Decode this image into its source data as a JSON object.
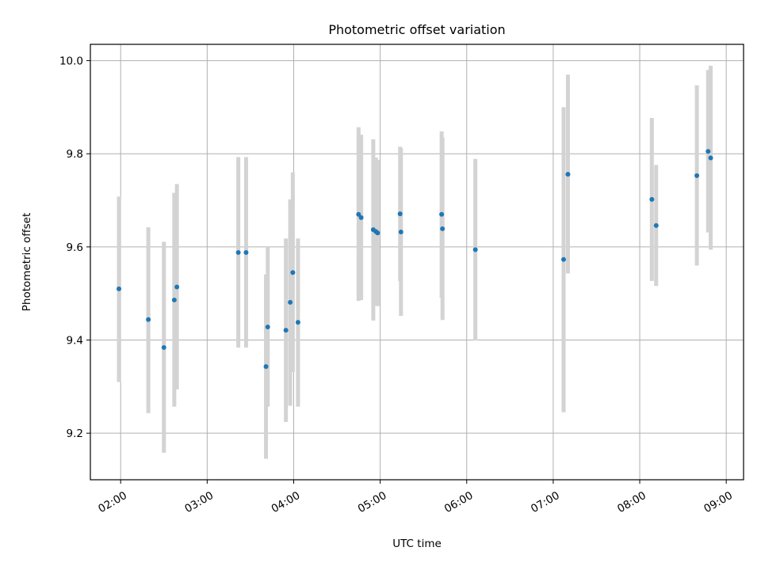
{
  "chart_data": {
    "type": "scatter",
    "title": "Photometric offset variation",
    "xlabel": "UTC time",
    "ylabel": "Photometric offset",
    "x_unit": "hours (UTC)",
    "xlim": [
      1.65,
      9.2
    ],
    "ylim": [
      9.1,
      10.035
    ],
    "xticks": [
      {
        "value": 2,
        "label": "02:00"
      },
      {
        "value": 3,
        "label": "03:00"
      },
      {
        "value": 4,
        "label": "04:00"
      },
      {
        "value": 5,
        "label": "05:00"
      },
      {
        "value": 6,
        "label": "06:00"
      },
      {
        "value": 7,
        "label": "07:00"
      },
      {
        "value": 8,
        "label": "08:00"
      },
      {
        "value": 9,
        "label": "09:00"
      }
    ],
    "yticks": [
      {
        "value": 9.2,
        "label": "9.2"
      },
      {
        "value": 9.4,
        "label": "9.4"
      },
      {
        "value": 9.6,
        "label": "9.6"
      },
      {
        "value": 9.8,
        "label": "9.8"
      },
      {
        "value": 10.0,
        "label": "10.0"
      }
    ],
    "grid": true,
    "point_color": "#1f77b4",
    "errorbar_color": "#d3d3d3",
    "points": [
      {
        "x": 1.98,
        "y": 9.51,
        "low": 9.31,
        "high": 9.708
      },
      {
        "x": 2.32,
        "y": 9.444,
        "low": 9.243,
        "high": 9.642
      },
      {
        "x": 2.5,
        "y": 9.384,
        "low": 9.158,
        "high": 9.611
      },
      {
        "x": 2.62,
        "y": 9.486,
        "low": 9.257,
        "high": 9.716
      },
      {
        "x": 2.65,
        "y": 9.514,
        "low": 9.294,
        "high": 9.735
      },
      {
        "x": 3.36,
        "y": 9.588,
        "low": 9.384,
        "high": 9.793
      },
      {
        "x": 3.45,
        "y": 9.588,
        "low": 9.384,
        "high": 9.793
      },
      {
        "x": 3.68,
        "y": 9.343,
        "low": 9.145,
        "high": 9.541
      },
      {
        "x": 3.7,
        "y": 9.428,
        "low": 9.257,
        "high": 9.6
      },
      {
        "x": 3.91,
        "y": 9.421,
        "low": 9.224,
        "high": 9.618
      },
      {
        "x": 3.96,
        "y": 9.481,
        "low": 9.259,
        "high": 9.702
      },
      {
        "x": 3.99,
        "y": 9.545,
        "low": 9.331,
        "high": 9.76
      },
      {
        "x": 4.05,
        "y": 9.438,
        "low": 9.257,
        "high": 9.618
      },
      {
        "x": 4.75,
        "y": 9.67,
        "low": 9.484,
        "high": 9.857
      },
      {
        "x": 4.78,
        "y": 9.663,
        "low": 9.486,
        "high": 9.841
      },
      {
        "x": 4.92,
        "y": 9.637,
        "low": 9.442,
        "high": 9.831
      },
      {
        "x": 4.95,
        "y": 9.633,
        "low": 9.474,
        "high": 9.792
      },
      {
        "x": 4.97,
        "y": 9.63,
        "low": 9.473,
        "high": 9.787
      },
      {
        "x": 5.23,
        "y": 9.671,
        "low": 9.527,
        "high": 9.815
      },
      {
        "x": 5.24,
        "y": 9.632,
        "low": 9.452,
        "high": 9.812
      },
      {
        "x": 5.71,
        "y": 9.67,
        "low": 9.491,
        "high": 9.848
      },
      {
        "x": 5.72,
        "y": 9.639,
        "low": 9.443,
        "high": 9.835
      },
      {
        "x": 6.1,
        "y": 9.594,
        "low": 9.399,
        "high": 9.789
      },
      {
        "x": 7.12,
        "y": 9.573,
        "low": 9.245,
        "high": 9.9
      },
      {
        "x": 7.17,
        "y": 9.756,
        "low": 9.543,
        "high": 9.97
      },
      {
        "x": 8.14,
        "y": 9.702,
        "low": 9.527,
        "high": 9.877
      },
      {
        "x": 8.19,
        "y": 9.646,
        "low": 9.516,
        "high": 9.776
      },
      {
        "x": 8.66,
        "y": 9.753,
        "low": 9.56,
        "high": 9.947
      },
      {
        "x": 8.79,
        "y": 9.805,
        "low": 9.631,
        "high": 9.98
      },
      {
        "x": 8.82,
        "y": 9.791,
        "low": 9.594,
        "high": 9.989
      }
    ]
  }
}
